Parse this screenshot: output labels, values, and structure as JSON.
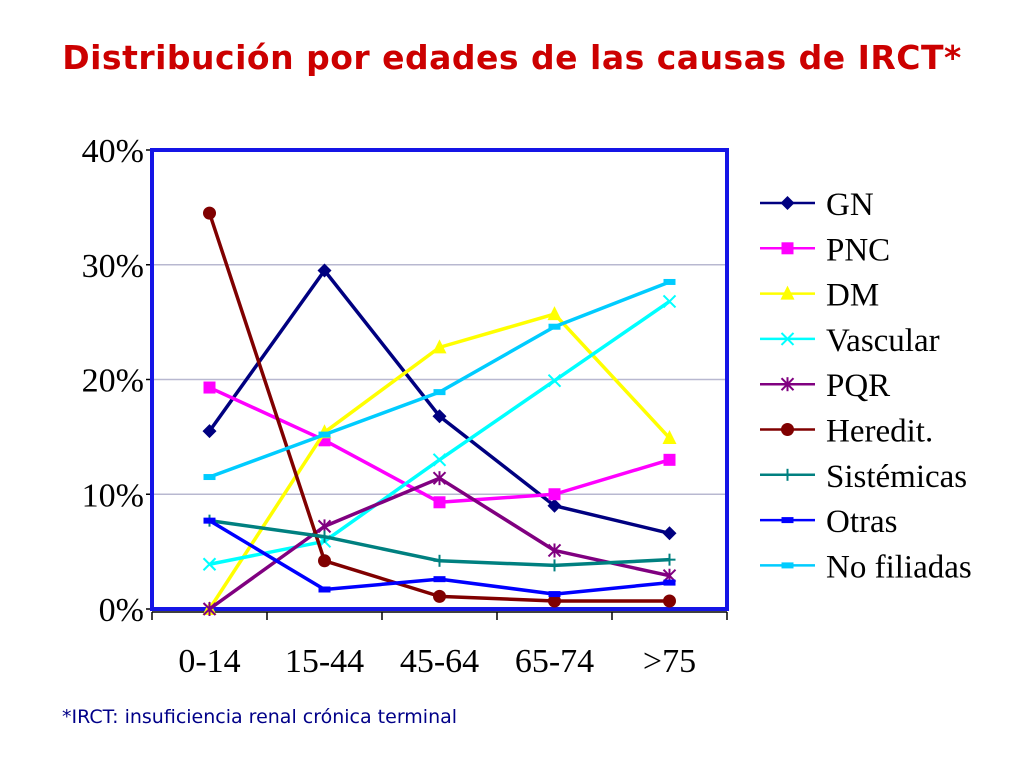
{
  "title": "Distribución por edades de las causas de IRCT*",
  "footnote": "*IRCT: insuficiencia renal crónica terminal",
  "chart_data": {
    "type": "line",
    "categories": [
      "0-14",
      "15-44",
      "45-64",
      "65-74",
      ">75"
    ],
    "y_ticks": [
      "0%",
      "10%",
      "20%",
      "30%",
      "40%"
    ],
    "ylim": [
      0,
      40
    ],
    "grid": true,
    "legend_position": "right",
    "series": [
      {
        "name": "GN",
        "values": [
          15.5,
          29.5,
          16.8,
          9.0,
          6.6
        ],
        "color": "#000080",
        "marker": "diamond"
      },
      {
        "name": "PNC",
        "values": [
          19.3,
          14.7,
          9.3,
          10.0,
          13.0
        ],
        "color": "#ff00ff",
        "marker": "square"
      },
      {
        "name": "DM",
        "values": [
          0.0,
          15.4,
          22.8,
          25.7,
          14.9
        ],
        "color": "#ffff00",
        "marker": "triangle"
      },
      {
        "name": "Vascular",
        "values": [
          3.9,
          5.9,
          13.0,
          19.9,
          26.8
        ],
        "color": "#00ffff",
        "marker": "x"
      },
      {
        "name": "PQR",
        "values": [
          0.0,
          7.2,
          11.4,
          5.1,
          2.9
        ],
        "color": "#800080",
        "marker": "star"
      },
      {
        "name": "Heredit.",
        "values": [
          34.5,
          4.2,
          1.1,
          0.7,
          0.7
        ],
        "color": "#800000",
        "marker": "circle"
      },
      {
        "name": "Sistémicas",
        "values": [
          7.7,
          6.3,
          4.2,
          3.8,
          4.3
        ],
        "color": "#008080",
        "marker": "plus"
      },
      {
        "name": "Otras",
        "values": [
          7.7,
          1.7,
          2.6,
          1.3,
          2.3
        ],
        "color": "#0000ff",
        "marker": "dash"
      },
      {
        "name": "No filiadas",
        "values": [
          11.5,
          15.2,
          18.9,
          24.6,
          28.5
        ],
        "color": "#00ccff",
        "marker": "dash"
      }
    ]
  }
}
